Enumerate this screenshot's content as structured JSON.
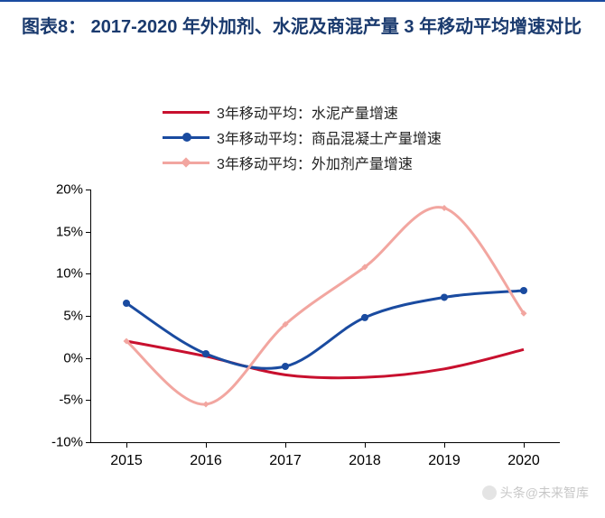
{
  "title": "图表8：  2017-2020 年外加剂、水泥及商混产量 3 年移动平均增速对比",
  "chart": {
    "type": "line",
    "background_color": "#ffffff",
    "title_color": "#1a3a6e",
    "title_fontsize": 20,
    "axis_color": "#000000",
    "tick_fontsize": 15,
    "y_axis": {
      "min": -10,
      "max": 20,
      "ticks": [
        -10,
        -5,
        0,
        5,
        10,
        15,
        20
      ],
      "tick_labels": [
        "-10%",
        "-5%",
        "0%",
        "5%",
        "10%",
        "15%",
        "20%"
      ]
    },
    "x_axis": {
      "categories": [
        "2015",
        "2016",
        "2017",
        "2018",
        "2019",
        "2020"
      ]
    },
    "legend": {
      "position": "top",
      "fontsize": 16,
      "items": [
        {
          "label": "3年移动平均：水泥产量增速",
          "color": "#c8102e",
          "marker": "none"
        },
        {
          "label": "3年移动平均：商品混凝土产量增速",
          "color": "#1a4ba0",
          "marker": "circle"
        },
        {
          "label": "3年移动平均：外加剂产量增速",
          "color": "#f2a6a0",
          "marker": "diamond"
        }
      ]
    },
    "series": [
      {
        "name": "cement",
        "label": "3年移动平均：水泥产量增速",
        "color": "#c8102e",
        "line_width": 3,
        "marker": "none",
        "values": [
          2.0,
          0.2,
          -2.0,
          -2.3,
          -1.3,
          1.0
        ]
      },
      {
        "name": "concrete",
        "label": "3年移动平均：商品混凝土产量增速",
        "color": "#1a4ba0",
        "line_width": 3,
        "marker": "circle",
        "marker_size": 8,
        "values": [
          6.5,
          0.5,
          -1.0,
          4.8,
          7.2,
          8.0
        ]
      },
      {
        "name": "additive",
        "label": "3年移动平均：外加剂产量增速",
        "color": "#f2a6a0",
        "line_width": 3,
        "marker": "diamond",
        "marker_size": 7,
        "values": [
          2.0,
          -5.5,
          4.0,
          10.8,
          17.8,
          5.3
        ]
      }
    ]
  },
  "watermark": "头条@未来智库"
}
